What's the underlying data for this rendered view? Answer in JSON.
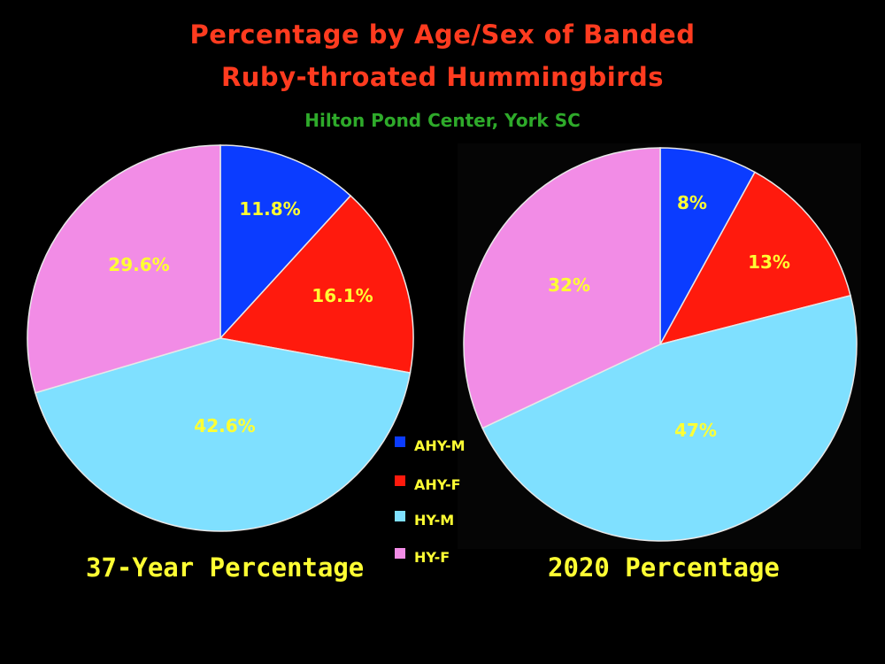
{
  "title_line1": "Percentage by Age/Sex of Banded",
  "title_line2": "Ruby-throated Hummingbirds",
  "subtitle": "Hilton Pond Center, York SC",
  "legend": [
    {
      "label": "AHY-M",
      "color": "#0b3cff"
    },
    {
      "label": "AHY-F",
      "color": "#ff1a0d"
    },
    {
      "label": "HY-M",
      "color": "#7fe0ff"
    },
    {
      "label": "HY-F",
      "color": "#f28ce6"
    }
  ],
  "chart_data": [
    {
      "type": "pie",
      "title": "37-Year Percentage",
      "categories": [
        "AHY-M",
        "AHY-F",
        "HY-M",
        "HY-F"
      ],
      "values": [
        11.8,
        16.1,
        42.6,
        29.6
      ],
      "labels": [
        "11.8%",
        "16.1%",
        "42.6%",
        "29.6%"
      ]
    },
    {
      "type": "pie",
      "title": "2020 Percentage",
      "categories": [
        "AHY-M",
        "AHY-F",
        "HY-M",
        "HY-F"
      ],
      "values": [
        8,
        13,
        47,
        32
      ],
      "labels": [
        "8%",
        "13%",
        "47%",
        "32%"
      ]
    }
  ]
}
